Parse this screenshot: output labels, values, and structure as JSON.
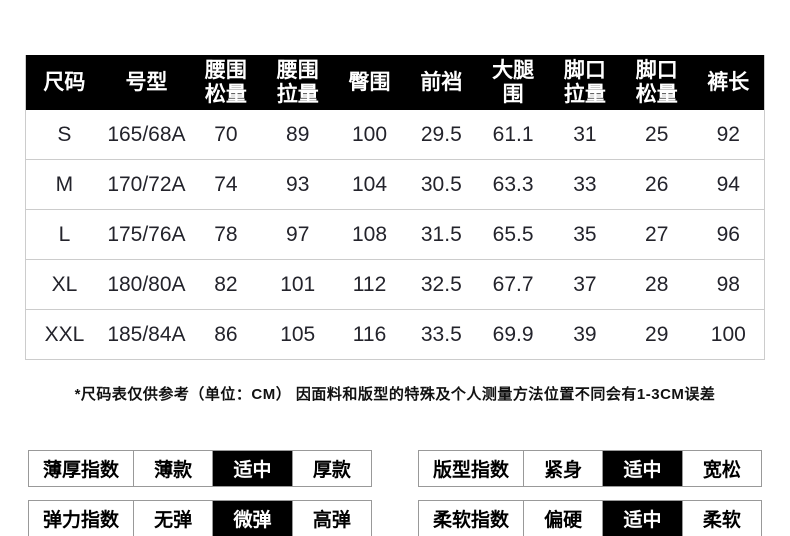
{
  "colors": {
    "header_bg": "#000000",
    "header_text": "#ffffff",
    "body_text": "#23232b",
    "row_border": "#cccccc",
    "indicator_border": "#999999",
    "active_option_bg": "#000000",
    "active_option_text": "#ffffff"
  },
  "size_table": {
    "headers": [
      [
        "尺码"
      ],
      [
        "号型"
      ],
      [
        "腰围",
        "松量"
      ],
      [
        "腰围",
        "拉量"
      ],
      [
        "臀围"
      ],
      [
        "前裆"
      ],
      [
        "大腿",
        "围"
      ],
      [
        "脚口",
        "拉量"
      ],
      [
        "脚口",
        "松量"
      ],
      [
        "裤长"
      ]
    ],
    "rows": [
      [
        "S",
        "165/68A",
        "70",
        "89",
        "100",
        "29.5",
        "61.1",
        "31",
        "25",
        "92"
      ],
      [
        "M",
        "170/72A",
        "74",
        "93",
        "104",
        "30.5",
        "63.3",
        "33",
        "26",
        "94"
      ],
      [
        "L",
        "175/76A",
        "78",
        "97",
        "108",
        "31.5",
        "65.5",
        "35",
        "27",
        "96"
      ],
      [
        "XL",
        "180/80A",
        "82",
        "101",
        "112",
        "32.5",
        "67.7",
        "37",
        "28",
        "98"
      ],
      [
        "XXL",
        "185/84A",
        "86",
        "105",
        "116",
        "33.5",
        "69.9",
        "39",
        "29",
        "100"
      ]
    ]
  },
  "note": "*尺码表仅供参考（单位：CM） 因面料和版型的特殊及个人测量方法位置不同会有1-3CM误差",
  "indicator_groups": [
    {
      "label": "薄厚指数",
      "options": [
        "薄款",
        "适中",
        "厚款"
      ],
      "active_index": 1
    },
    {
      "label": "版型指数",
      "options": [
        "紧身",
        "适中",
        "宽松"
      ],
      "active_index": 1
    },
    {
      "label": "弹力指数",
      "options": [
        "无弹",
        "微弹",
        "高弹"
      ],
      "active_index": 1
    },
    {
      "label": "柔软指数",
      "options": [
        "偏硬",
        "适中",
        "柔软"
      ],
      "active_index": 1
    }
  ]
}
